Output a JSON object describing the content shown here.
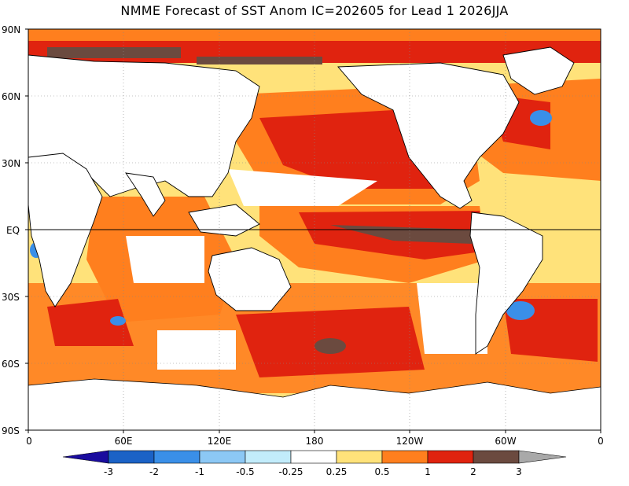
{
  "title": "NMME Forecast of SST Anom IC=202605 for Lead 1 2026JJA",
  "lat_ticks": [
    "90N",
    "60N",
    "30N",
    "EQ",
    "30S",
    "60S",
    "90S"
  ],
  "lon_ticks": [
    "0",
    "60E",
    "120E",
    "180",
    "120W",
    "60W",
    "0"
  ],
  "colorbar": {
    "labels": [
      "-3",
      "-2",
      "-1",
      "-0.5",
      "-0.25",
      "0.25",
      "0.5",
      "1",
      "2",
      "3"
    ],
    "colors": [
      "#1a0c9e",
      "#1b62c6",
      "#3a8fe8",
      "#8cc8f5",
      "#c2ecfb",
      "#ffffff",
      "#ffe27a",
      "#ff7f1e",
      "#e0230f",
      "#6b4a3f",
      "#a9a9a9"
    ]
  },
  "map_colors": {
    "land": "#ffffff",
    "neutral": "#ffffff",
    "weak_pos": "#ffe27a",
    "mod_pos": "#ff7f1e",
    "strong_pos": "#e0230f",
    "extreme_pos": "#6b4a3f",
    "weak_neg": "#c2ecfb",
    "mod_neg": "#3a8fe8"
  }
}
